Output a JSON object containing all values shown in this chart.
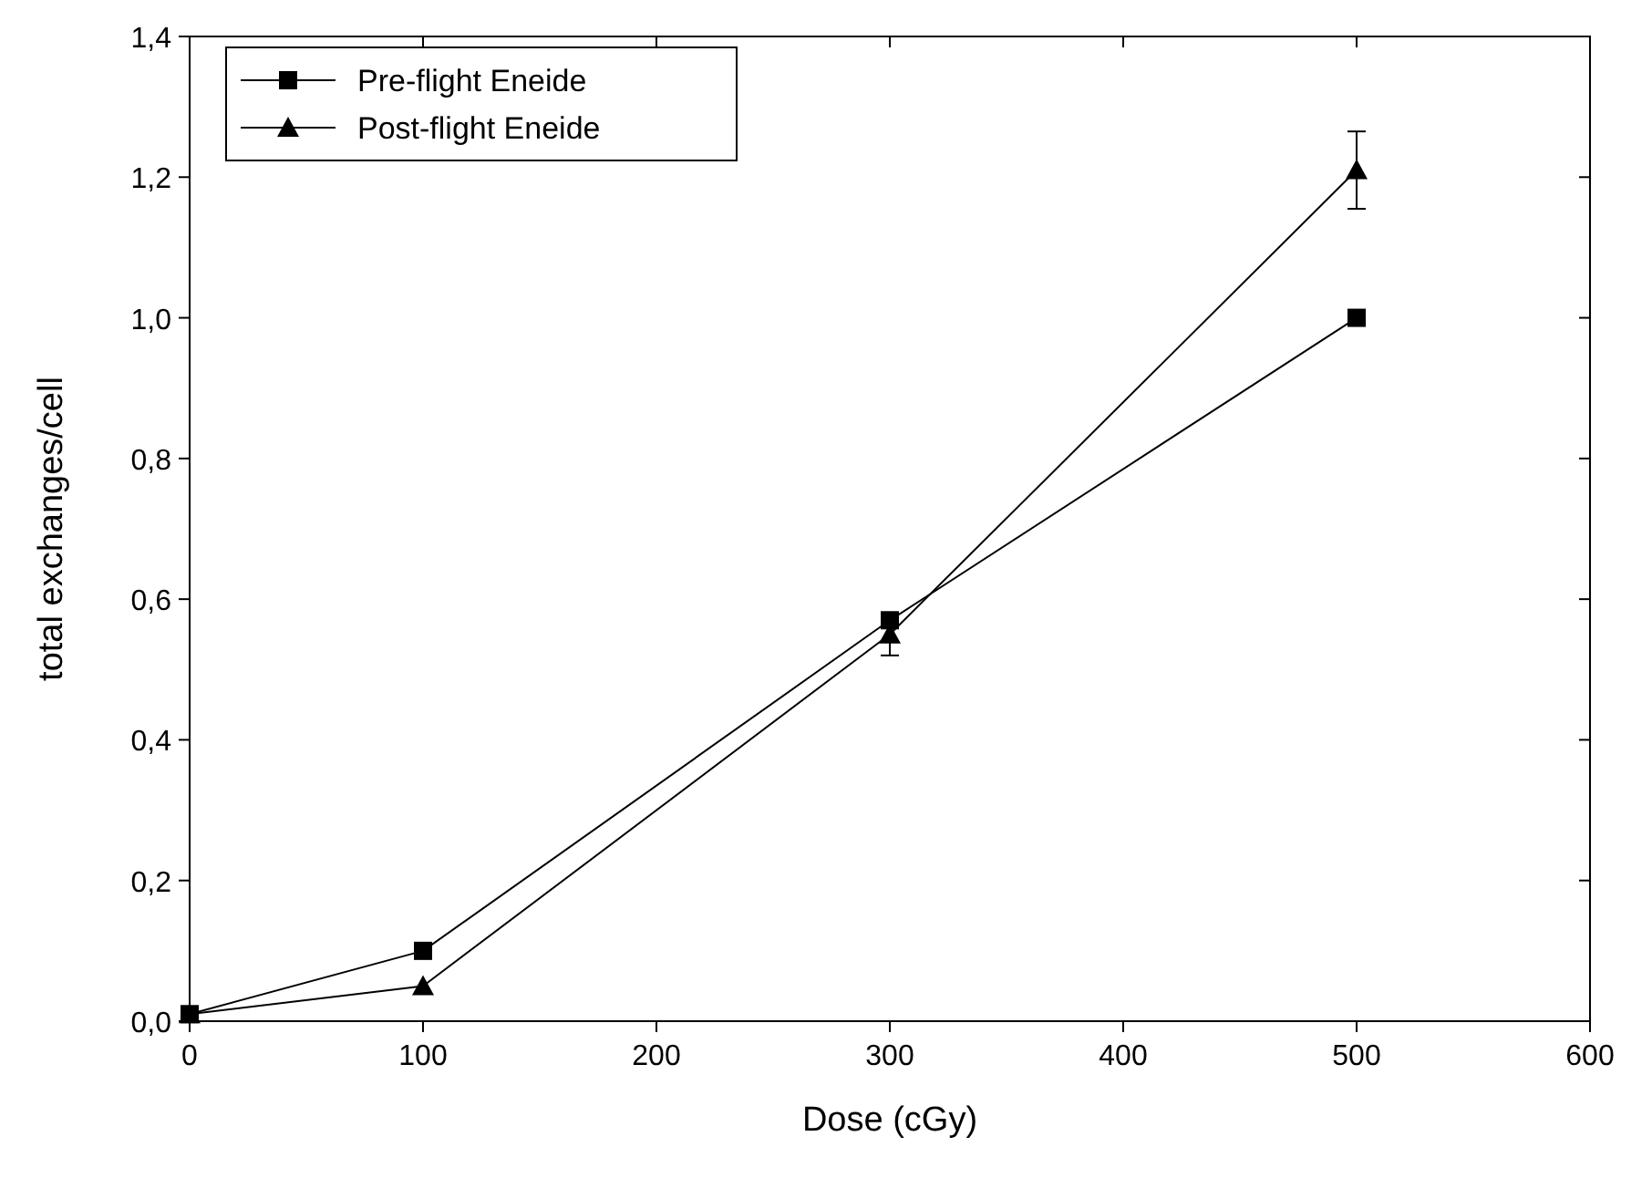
{
  "chart_data": {
    "type": "line",
    "xlabel": "Dose (cGy)",
    "ylabel": "total exchanges/cell",
    "xlim": [
      0,
      600
    ],
    "xticks": [
      0,
      100,
      200,
      300,
      400,
      500,
      600
    ],
    "ylim": [
      0,
      1.4
    ],
    "yticks": [
      {
        "value": 0,
        "label": "0,0"
      },
      {
        "value": 0.2,
        "label": "0,2"
      },
      {
        "value": 0.4,
        "label": "0,4"
      },
      {
        "value": 0.6,
        "label": "0,6"
      },
      {
        "value": 0.8,
        "label": "0,8"
      },
      {
        "value": 1.0,
        "label": "1,0"
      },
      {
        "value": 1.2,
        "label": "1,2"
      },
      {
        "value": 1.4,
        "label": "1,4"
      }
    ],
    "x": [
      0,
      100,
      300,
      500
    ],
    "legend": "top left",
    "grid": false,
    "series": [
      {
        "name": "Pre-flight Eneide",
        "color": "#000000",
        "marker": "square",
        "values": [
          0.01,
          0.1,
          0.57,
          1.0
        ]
      },
      {
        "name": "Post-flight Eneide",
        "color": "#000000",
        "marker": "triangle",
        "values": [
          0.01,
          0.05,
          0.55,
          1.21
        ],
        "errors": [
          null,
          null,
          0.03,
          0.055
        ]
      }
    ]
  }
}
